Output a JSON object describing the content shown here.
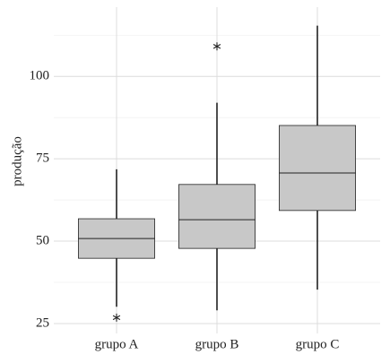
{
  "chart_data": {
    "type": "box",
    "y_label": "produção",
    "categories": [
      "grupo A",
      "grupo B",
      "grupo C"
    ],
    "boxes": [
      {
        "min": 30.1,
        "q1": 44.8,
        "median": 50.8,
        "q3": 56.8,
        "max": 71.8,
        "outliers": [
          26.8
        ]
      },
      {
        "min": 29,
        "q1": 47.8,
        "median": 56.5,
        "q3": 67.2,
        "max": 92,
        "outliers": [
          109.1
        ]
      },
      {
        "min": 35.3,
        "q1": 59.3,
        "median": 70.7,
        "q3": 85.1,
        "max": 115.4,
        "outliers": []
      }
    ],
    "color": "#c8c8c8",
    "ylim": [
      22,
      121
    ],
    "yticks": [
      25,
      50,
      75,
      100
    ],
    "minor_yticks": [
      37.5,
      62.5,
      87.5,
      112.5
    ],
    "grid": true
  }
}
